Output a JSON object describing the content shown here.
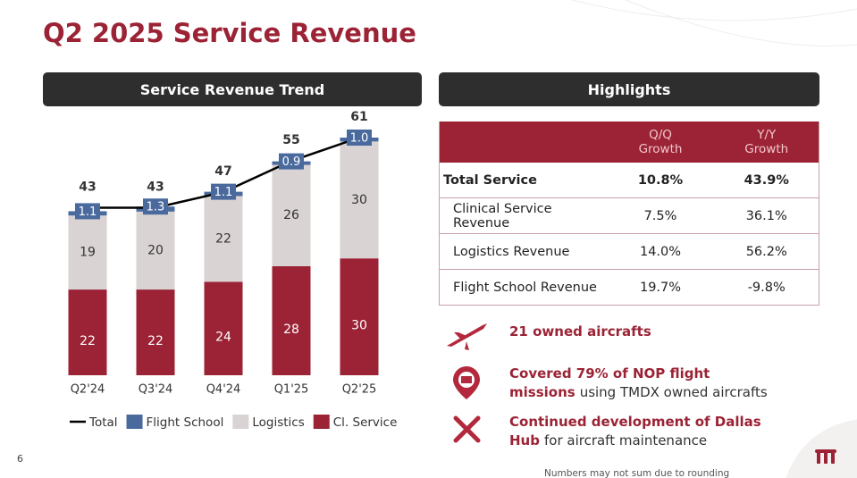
{
  "title": "Q2 2025 Service Revenue",
  "page_number": "6",
  "footnote": "Numbers may not sum due to rounding",
  "chart_data": {
    "type": "bar",
    "stacked": true,
    "title": "Service Revenue Trend",
    "categories": [
      "Q2'24",
      "Q3'24",
      "Q4'24",
      "Q1'25",
      "Q2'25"
    ],
    "series": [
      {
        "name": "Total",
        "type": "line",
        "color": "#000000",
        "values": [
          43,
          43,
          47,
          55,
          61
        ]
      },
      {
        "name": "Flight School",
        "color": "#4a6a9e",
        "values": [
          1.1,
          1.3,
          1.1,
          0.9,
          1.0
        ],
        "value_labels": [
          "1.1",
          "1.3",
          "1.1",
          "0.9",
          "1.0"
        ]
      },
      {
        "name": "Logistics",
        "color": "#d9d3d3",
        "values": [
          19,
          20,
          22,
          26,
          30
        ]
      },
      {
        "name": "Cl. Service",
        "color": "#9b2335",
        "values": [
          22,
          22,
          24,
          28,
          30
        ]
      }
    ]
  },
  "highlights": {
    "title": "Highlights",
    "columns": [
      "Q/Q Growth",
      "Y/Y Growth"
    ],
    "rows": [
      [
        "Total Service",
        "10.8%",
        "43.9%"
      ],
      [
        "Clinical Service Revenue",
        "7.5%",
        "36.1%"
      ],
      [
        "Logistics Revenue",
        "14.0%",
        "56.2%"
      ],
      [
        "Flight School Revenue",
        "19.7%",
        "-9.8%"
      ]
    ]
  },
  "bullets": [
    {
      "bold": "21 owned aircrafts"
    },
    {
      "bold": "Covered 79% of NOP flight missions",
      "text": "using TMDX owned aircrafts"
    },
    {
      "bold": "Continued development of Dallas Hub",
      "text": "for aircraft maintenance"
    }
  ]
}
